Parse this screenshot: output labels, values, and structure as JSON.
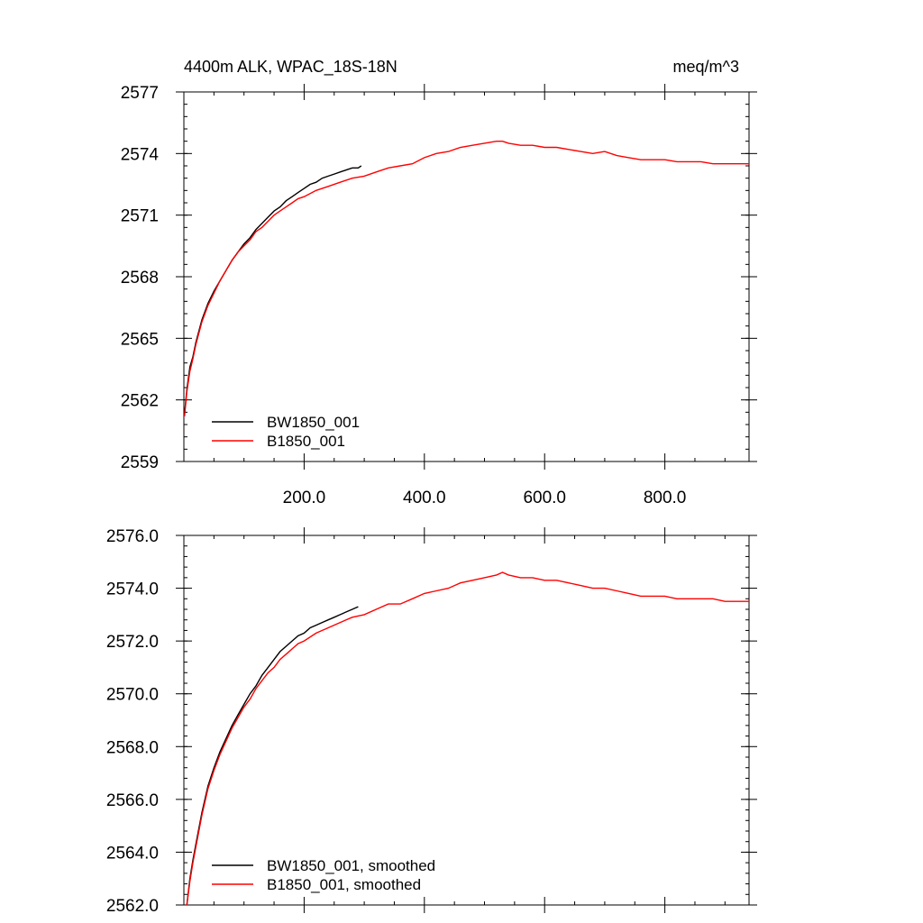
{
  "chart_data": [
    {
      "type": "line",
      "title": "4400m ALK, WPAC_18S-18N",
      "units": "meq/m^3",
      "xlim": [
        0,
        940
      ],
      "ylim": [
        2559,
        2577
      ],
      "xticks": [
        200,
        400,
        600,
        800
      ],
      "xtick_labels": [
        "200.0",
        "400.0",
        "600.0",
        "800.0"
      ],
      "yticks": [
        2559,
        2562,
        2565,
        2568,
        2571,
        2574,
        2577
      ],
      "ytick_labels": [
        "2559",
        "2562",
        "2565",
        "2568",
        "2571",
        "2574",
        "2577"
      ],
      "grid": false,
      "legend_position": "bottom-left",
      "series": [
        {
          "name": "BW1850_001",
          "color": "#000000",
          "x": [
            1,
            5,
            10,
            15,
            20,
            30,
            40,
            50,
            60,
            70,
            80,
            90,
            100,
            110,
            120,
            130,
            140,
            150,
            160,
            170,
            180,
            190,
            200,
            210,
            220,
            230,
            240,
            250,
            260,
            270,
            280,
            290,
            295
          ],
          "y": [
            2561.3,
            2562.5,
            2563.6,
            2564.1,
            2564.8,
            2565.9,
            2566.7,
            2567.3,
            2567.8,
            2568.3,
            2568.8,
            2569.2,
            2569.6,
            2569.9,
            2570.3,
            2570.6,
            2570.9,
            2571.2,
            2571.4,
            2571.7,
            2571.9,
            2572.1,
            2572.3,
            2572.5,
            2572.6,
            2572.8,
            2572.9,
            2573.0,
            2573.1,
            2573.2,
            2573.3,
            2573.3,
            2573.4
          ]
        },
        {
          "name": "B1850_001",
          "color": "#ff0000",
          "x": [
            1,
            5,
            10,
            15,
            20,
            30,
            40,
            50,
            60,
            70,
            80,
            90,
            100,
            110,
            120,
            130,
            140,
            150,
            160,
            170,
            180,
            190,
            200,
            220,
            240,
            260,
            280,
            300,
            320,
            340,
            360,
            380,
            400,
            420,
            440,
            460,
            480,
            500,
            520,
            530,
            540,
            560,
            580,
            600,
            620,
            640,
            660,
            680,
            700,
            720,
            740,
            760,
            780,
            800,
            820,
            840,
            860,
            880,
            900,
            920,
            940
          ],
          "y": [
            2561.2,
            2562.4,
            2563.4,
            2564.0,
            2564.7,
            2565.8,
            2566.6,
            2567.2,
            2567.8,
            2568.3,
            2568.8,
            2569.2,
            2569.5,
            2569.8,
            2570.2,
            2570.4,
            2570.7,
            2571.0,
            2571.2,
            2571.4,
            2571.6,
            2571.8,
            2571.9,
            2572.2,
            2572.4,
            2572.6,
            2572.8,
            2572.9,
            2573.1,
            2573.3,
            2573.4,
            2573.5,
            2573.8,
            2574.0,
            2574.1,
            2574.3,
            2574.4,
            2574.5,
            2574.6,
            2574.6,
            2574.5,
            2574.4,
            2574.4,
            2574.3,
            2574.3,
            2574.2,
            2574.1,
            2574.0,
            2574.1,
            2573.9,
            2573.8,
            2573.7,
            2573.7,
            2573.7,
            2573.6,
            2573.6,
            2573.6,
            2573.5,
            2573.5,
            2573.5,
            2573.5
          ]
        }
      ]
    },
    {
      "type": "line",
      "title": "",
      "xlim": [
        0,
        940
      ],
      "ylim": [
        2562,
        2576
      ],
      "xticks": [
        200,
        400,
        600,
        800
      ],
      "xtick_labels": [],
      "yticks": [
        2562,
        2564,
        2566,
        2568,
        2570,
        2572,
        2574,
        2576
      ],
      "ytick_labels": [
        "2562.0",
        "2564.0",
        "2566.0",
        "2568.0",
        "2570.0",
        "2572.0",
        "2574.0",
        "2576.0"
      ],
      "grid": false,
      "legend_position": "bottom-left",
      "series": [
        {
          "name": "BW1850_001, smoothed",
          "color": "#000000",
          "x": [
            5,
            10,
            15,
            20,
            30,
            40,
            50,
            60,
            70,
            80,
            90,
            100,
            110,
            120,
            130,
            140,
            150,
            160,
            170,
            180,
            190,
            200,
            210,
            220,
            230,
            240,
            250,
            260,
            270,
            280,
            290
          ],
          "y": [
            2562.0,
            2563.0,
            2563.7,
            2564.3,
            2565.5,
            2566.5,
            2567.2,
            2567.8,
            2568.3,
            2568.8,
            2569.2,
            2569.6,
            2570.0,
            2570.3,
            2570.7,
            2571.0,
            2571.3,
            2571.6,
            2571.8,
            2572.0,
            2572.2,
            2572.3,
            2572.5,
            2572.6,
            2572.7,
            2572.8,
            2572.9,
            2573.0,
            2573.1,
            2573.2,
            2573.3
          ]
        },
        {
          "name": "B1850_001, smoothed",
          "color": "#ff0000",
          "x": [
            5,
            10,
            15,
            20,
            30,
            40,
            50,
            60,
            70,
            80,
            90,
            100,
            110,
            120,
            130,
            140,
            150,
            160,
            170,
            180,
            190,
            200,
            220,
            240,
            260,
            280,
            300,
            320,
            340,
            360,
            380,
            400,
            420,
            440,
            460,
            480,
            500,
            520,
            530,
            540,
            560,
            580,
            600,
            620,
            640,
            660,
            680,
            700,
            720,
            740,
            760,
            780,
            800,
            820,
            840,
            860,
            880,
            900,
            920,
            940
          ],
          "y": [
            2562.0,
            2562.9,
            2563.6,
            2564.2,
            2565.4,
            2566.4,
            2567.1,
            2567.7,
            2568.2,
            2568.7,
            2569.1,
            2569.5,
            2569.8,
            2570.2,
            2570.5,
            2570.8,
            2571.0,
            2571.3,
            2571.5,
            2571.7,
            2571.9,
            2572.0,
            2572.3,
            2572.5,
            2572.7,
            2572.9,
            2573.0,
            2573.2,
            2573.4,
            2573.4,
            2573.6,
            2573.8,
            2573.9,
            2574.0,
            2574.2,
            2574.3,
            2574.4,
            2574.5,
            2574.6,
            2574.5,
            2574.4,
            2574.4,
            2574.3,
            2574.3,
            2574.2,
            2574.1,
            2574.0,
            2574.0,
            2573.9,
            2573.8,
            2573.7,
            2573.7,
            2573.7,
            2573.6,
            2573.6,
            2573.6,
            2573.6,
            2573.5,
            2573.5,
            2573.5
          ]
        }
      ]
    }
  ]
}
